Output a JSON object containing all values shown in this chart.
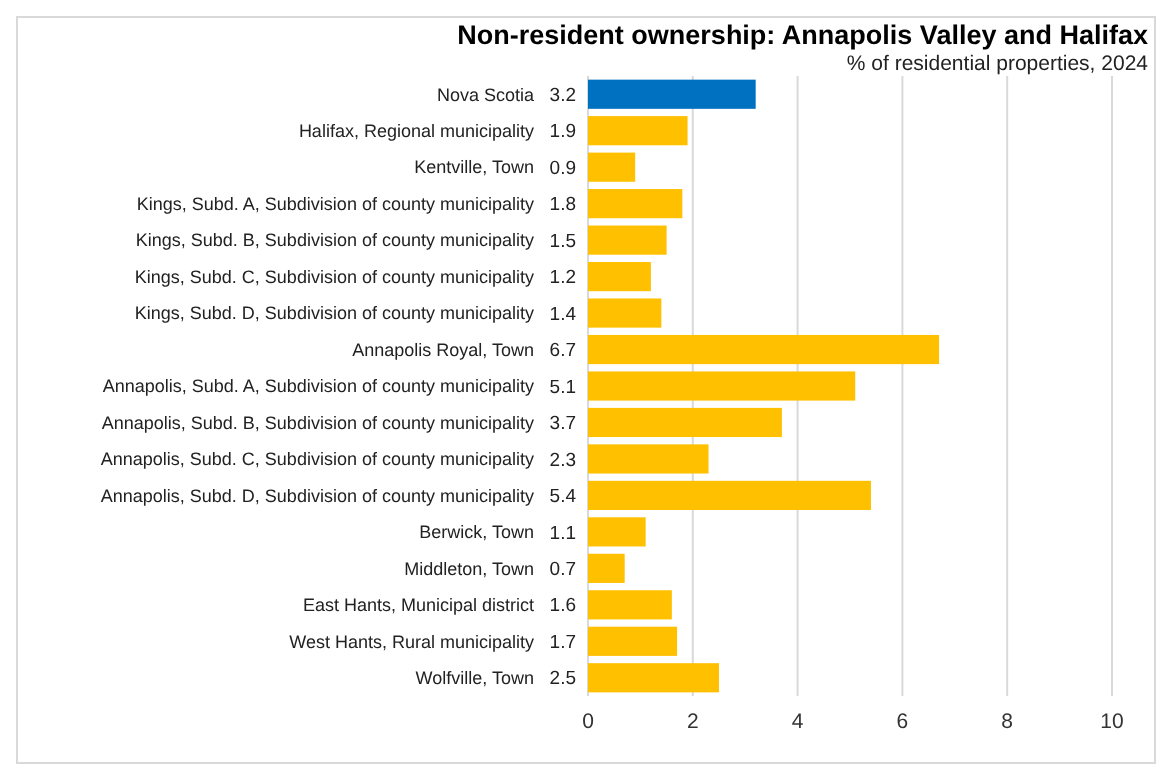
{
  "chart_data": {
    "type": "bar",
    "orientation": "horizontal",
    "title": "Non-resident ownership: Annapolis Valley and Halifax",
    "subtitle": "% of residential properties, 2024",
    "categories": [
      "Nova Scotia",
      "Halifax, Regional municipality",
      "Kentville, Town",
      "Kings, Subd. A, Subdivision of county municipality",
      "Kings, Subd. B, Subdivision of county municipality",
      "Kings, Subd. C, Subdivision of county municipality",
      "Kings, Subd. D, Subdivision of county municipality",
      "Annapolis Royal, Town",
      "Annapolis, Subd. A, Subdivision of county municipality",
      "Annapolis, Subd. B, Subdivision of county municipality",
      "Annapolis, Subd. C, Subdivision of county municipality",
      "Annapolis, Subd. D, Subdivision of county municipality",
      "Berwick, Town",
      "Middleton, Town",
      "East Hants, Municipal district",
      "West Hants, Rural municipality",
      "Wolfville, Town"
    ],
    "values": [
      3.2,
      1.9,
      0.9,
      1.8,
      1.5,
      1.2,
      1.4,
      6.7,
      5.1,
      3.7,
      2.3,
      5.4,
      1.1,
      0.7,
      1.6,
      1.7,
      2.5
    ],
    "colors": [
      "#0070c0",
      "#ffc000",
      "#ffc000",
      "#ffc000",
      "#ffc000",
      "#ffc000",
      "#ffc000",
      "#ffc000",
      "#ffc000",
      "#ffc000",
      "#ffc000",
      "#ffc000",
      "#ffc000",
      "#ffc000",
      "#ffc000",
      "#ffc000",
      "#ffc000"
    ],
    "xlim": [
      0,
      10
    ],
    "xticks": [
      0,
      2,
      4,
      6,
      8,
      10
    ],
    "grid": "x",
    "data_labels": true
  }
}
